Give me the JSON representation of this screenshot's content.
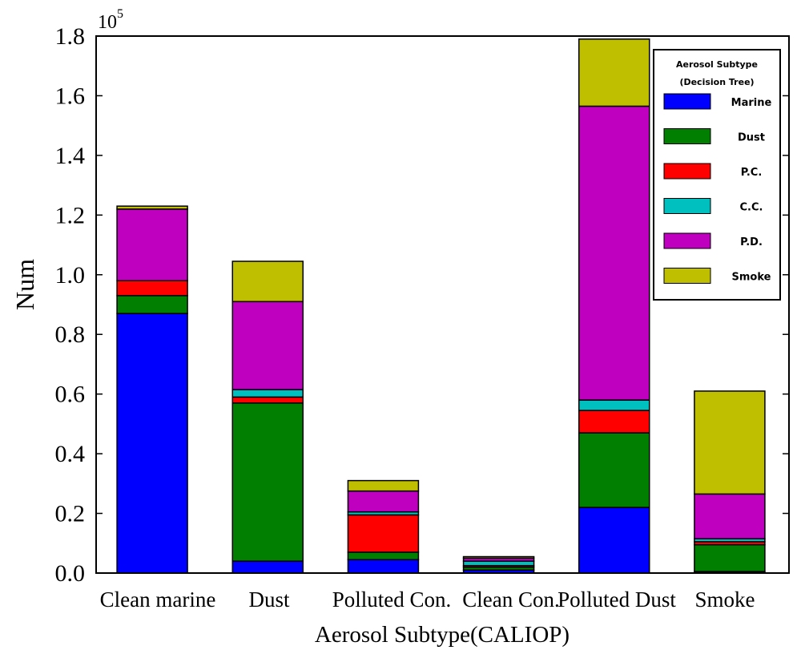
{
  "chart_data": {
    "type": "bar",
    "stacked": true,
    "categories": [
      "Clean marine",
      "Dust",
      "Polluted Con.",
      "Clean Con.",
      "Polluted Dust",
      "Smoke"
    ],
    "xlabel": "Aerosol Subtype(CALIOP)",
    "ylabel": "Num",
    "y_exponent_label": "10",
    "y_exponent_power": "5",
    "y_scale": 100000,
    "ylim": [
      0,
      1.8
    ],
    "yticks": [
      "0.0",
      "0.2",
      "0.4",
      "0.6",
      "0.8",
      "1.0",
      "1.2",
      "1.4",
      "1.6",
      "1.8"
    ],
    "ytick_values": [
      0,
      0.2,
      0.4,
      0.6,
      0.8,
      1.0,
      1.2,
      1.4,
      1.6,
      1.8
    ],
    "grid": false,
    "legend": {
      "placement": "top-right",
      "title_line1": "Aerosol Subtype",
      "title_line2": "(Decision Tree)"
    },
    "series": [
      {
        "name": "Marine",
        "color": "#0000ff",
        "values": [
          0.87,
          0.04,
          0.045,
          0.01,
          0.22,
          0.005
        ]
      },
      {
        "name": "Dust",
        "color": "#007f00",
        "values": [
          0.06,
          0.53,
          0.025,
          0.01,
          0.25,
          0.09
        ]
      },
      {
        "name": "P.C.",
        "color": "#ff0000",
        "values": [
          0.05,
          0.02,
          0.125,
          0.005,
          0.075,
          0.01
        ]
      },
      {
        "name": "C.C.",
        "color": "#00bfbf",
        "values": [
          0.0,
          0.025,
          0.01,
          0.015,
          0.035,
          0.01
        ]
      },
      {
        "name": "P.D.",
        "color": "#bf00bf",
        "values": [
          0.24,
          0.295,
          0.07,
          0.01,
          0.985,
          0.15
        ]
      },
      {
        "name": "Smoke",
        "color": "#bfbf00",
        "values": [
          0.01,
          0.135,
          0.035,
          0.005,
          0.225,
          0.345
        ]
      }
    ]
  }
}
